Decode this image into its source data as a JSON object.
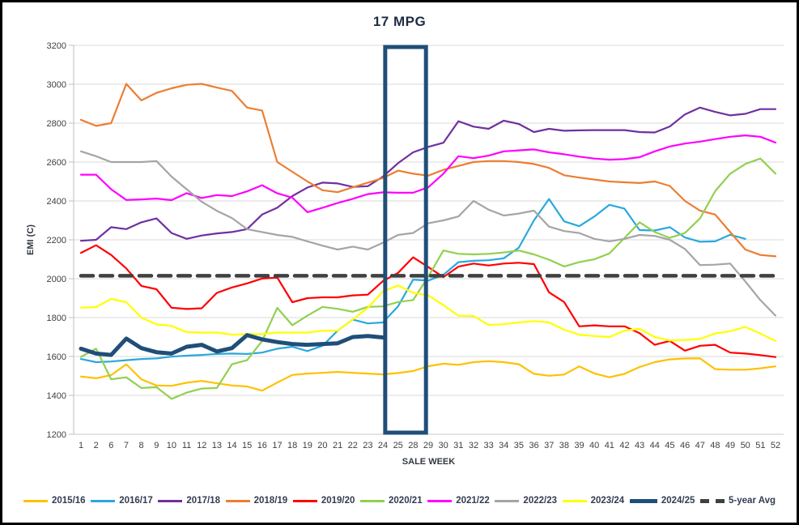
{
  "chart_data": {
    "type": "line",
    "title": "17 MPG",
    "xlabel": "SALE WEEK",
    "ylabel": "EMI (C)",
    "ylim": [
      1200,
      3200
    ],
    "ytick_step": 200,
    "grid": true,
    "legend_position": "bottom",
    "categories": [
      "1",
      "2",
      "6",
      "7",
      "8",
      "9",
      "10",
      "11",
      "12",
      "13",
      "14",
      "15",
      "16",
      "17",
      "18",
      "19",
      "20",
      "21",
      "22",
      "23",
      "24",
      "25",
      "28",
      "29",
      "30",
      "31",
      "32",
      "33",
      "34",
      "35",
      "36",
      "37",
      "38",
      "39",
      "40",
      "41",
      "42",
      "43",
      "44",
      "45",
      "46",
      "47",
      "48",
      "49",
      "50",
      "51",
      "52"
    ],
    "series": [
      {
        "name": "2015/16",
        "color": "#FFC000",
        "width": 2.2,
        "values": [
          1497,
          1488,
          1504,
          1560,
          1483,
          1451,
          1449,
          1465,
          1474,
          1462,
          1451,
          1446,
          1424,
          1466,
          1505,
          1512,
          1516,
          1521,
          1516,
          1512,
          1508,
          1515,
          1525,
          1550,
          1563,
          1557,
          1571,
          1576,
          1571,
          1560,
          1511,
          1501,
          1507,
          1549,
          1513,
          1493,
          1511,
          1546,
          1571,
          1585,
          1590,
          1590,
          1535,
          1532,
          1532,
          1539,
          1549
        ]
      },
      {
        "name": "2016/17",
        "color": "#29A8DE",
        "width": 2.2,
        "values": [
          1587,
          1571,
          1574,
          1581,
          1587,
          1590,
          1599,
          1604,
          1608,
          1613,
          1615,
          1613,
          1620,
          1640,
          1650,
          1628,
          1655,
          1733,
          1790,
          1770,
          1775,
          1858,
          1995,
          1990,
          2020,
          2085,
          2092,
          2095,
          2105,
          2160,
          2300,
          2410,
          2295,
          2270,
          2320,
          2380,
          2360,
          2250,
          2248,
          2265,
          2212,
          2190,
          2192,
          2226,
          2205,
          null,
          null
        ]
      },
      {
        "name": "2017/18",
        "color": "#7030A0",
        "width": 2.2,
        "values": [
          2195,
          2200,
          2265,
          2255,
          2290,
          2310,
          2235,
          2205,
          2222,
          2233,
          2240,
          2255,
          2330,
          2365,
          2425,
          2469,
          2494,
          2490,
          2472,
          2476,
          2525,
          2594,
          2650,
          2678,
          2699,
          2810,
          2782,
          2771,
          2813,
          2796,
          2754,
          2771,
          2761,
          2763,
          2764,
          2764,
          2764,
          2754,
          2752,
          2783,
          2845,
          2880,
          2858,
          2840,
          2848,
          2872,
          2872
        ]
      },
      {
        "name": "2018/19",
        "color": "#ED7D31",
        "width": 2.2,
        "values": [
          2817,
          2786,
          2800,
          3002,
          2917,
          2956,
          2979,
          2997,
          3002,
          2983,
          2966,
          2880,
          2865,
          2600,
          2550,
          2500,
          2455,
          2445,
          2470,
          2494,
          2518,
          2556,
          2540,
          2530,
          2560,
          2580,
          2600,
          2605,
          2605,
          2600,
          2590,
          2570,
          2532,
          2520,
          2510,
          2500,
          2496,
          2492,
          2500,
          2477,
          2400,
          2350,
          2330,
          2240,
          2150,
          2122,
          2115
        ]
      },
      {
        "name": "2019/20",
        "color": "#FF0000",
        "width": 2.2,
        "values": [
          2133,
          2172,
          2122,
          2053,
          1963,
          1946,
          1851,
          1844,
          1848,
          1927,
          1955,
          1976,
          2001,
          2006,
          1879,
          1900,
          1904,
          1904,
          1914,
          1918,
          1988,
          2030,
          2110,
          2060,
          2008,
          2062,
          2078,
          2068,
          2078,
          2082,
          2075,
          1930,
          1880,
          1755,
          1760,
          1755,
          1755,
          1720,
          1660,
          1680,
          1630,
          1655,
          1660,
          1620,
          1615,
          1607,
          1597
        ]
      },
      {
        "name": "2020/21",
        "color": "#92D050",
        "width": 2.2,
        "values": [
          1598,
          1640,
          1483,
          1493,
          1438,
          1442,
          1382,
          1414,
          1435,
          1438,
          1560,
          1581,
          1680,
          1850,
          1761,
          1810,
          1855,
          1845,
          1830,
          1855,
          1858,
          1880,
          1890,
          2010,
          2145,
          2128,
          2125,
          2128,
          2135,
          2145,
          2125,
          2098,
          2063,
          2085,
          2100,
          2130,
          2210,
          2290,
          2240,
          2210,
          2235,
          2310,
          2450,
          2540,
          2590,
          2618,
          2540
        ]
      },
      {
        "name": "2021/22",
        "color": "#FF00FF",
        "width": 2.2,
        "values": [
          2535,
          2535,
          2460,
          2405,
          2408,
          2412,
          2404,
          2440,
          2415,
          2430,
          2425,
          2449,
          2481,
          2439,
          2417,
          2342,
          2365,
          2389,
          2411,
          2435,
          2444,
          2442,
          2442,
          2470,
          2540,
          2630,
          2620,
          2633,
          2655,
          2660,
          2665,
          2650,
          2640,
          2628,
          2618,
          2612,
          2615,
          2625,
          2655,
          2680,
          2695,
          2705,
          2718,
          2730,
          2737,
          2730,
          2700
        ]
      },
      {
        "name": "2022/23",
        "color": "#A5A5A5",
        "width": 2.2,
        "values": [
          2655,
          2630,
          2600,
          2600,
          2600,
          2605,
          2525,
          2460,
          2396,
          2349,
          2312,
          2255,
          2240,
          2225,
          2215,
          2192,
          2170,
          2150,
          2165,
          2150,
          2185,
          2225,
          2235,
          2285,
          2300,
          2320,
          2400,
          2355,
          2325,
          2335,
          2350,
          2268,
          2245,
          2235,
          2205,
          2192,
          2205,
          2225,
          2220,
          2200,
          2153,
          2070,
          2072,
          2078,
          1986,
          1890,
          1810
        ]
      },
      {
        "name": "2023/24",
        "color": "#FFFF00",
        "width": 2.2,
        "values": [
          1851,
          1854,
          1896,
          1879,
          1800,
          1765,
          1757,
          1726,
          1723,
          1723,
          1712,
          1715,
          1715,
          1723,
          1723,
          1723,
          1733,
          1733,
          1790,
          1850,
          1935,
          1965,
          1928,
          1914,
          1864,
          1810,
          1808,
          1762,
          1766,
          1775,
          1782,
          1775,
          1738,
          1712,
          1705,
          1700,
          1733,
          1742,
          1700,
          1682,
          1685,
          1690,
          1718,
          1730,
          1752,
          1718,
          1680
        ]
      },
      {
        "name": "2024/25",
        "color": "#1F4E79",
        "width": 5,
        "values": [
          1640,
          1615,
          1608,
          1692,
          1643,
          1622,
          1615,
          1650,
          1660,
          1626,
          1643,
          1710,
          1688,
          1674,
          1664,
          1660,
          1664,
          1668,
          1700,
          1705,
          1698,
          null,
          null,
          null,
          null,
          null,
          null,
          null,
          null,
          null,
          null,
          null,
          null,
          null,
          null,
          null,
          null,
          null,
          null,
          null,
          null,
          null,
          null,
          null,
          null,
          null,
          null
        ]
      },
      {
        "name": "5-year Avg",
        "color": "#404040",
        "width": 4.5,
        "dash": [
          15,
          9
        ],
        "constant": 2015
      }
    ],
    "highlight_box": {
      "color": "#1F4E79",
      "covers_weeks": [
        "25",
        "28"
      ],
      "from_index": 20.15,
      "to_index": 22.85
    }
  }
}
